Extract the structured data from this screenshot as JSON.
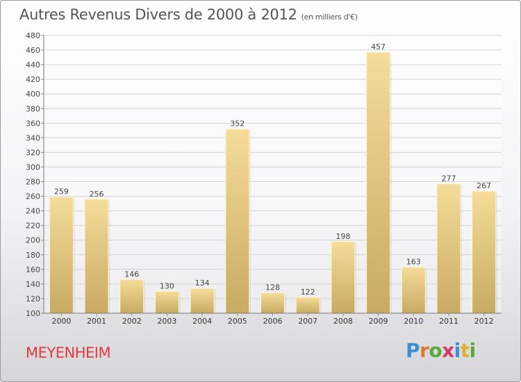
{
  "header": {
    "title": "Autres Revenus Divers de 2000 à 2012",
    "subtitle": "(en milliers d'€)"
  },
  "footer": {
    "city": "MEYENHEIM",
    "logo_text": "Proxiti"
  },
  "colors": {
    "bar_light": "#f5dc9a",
    "bar_dark": "#c8aa62",
    "city": "#e03a3a"
  },
  "chart_data": {
    "type": "bar",
    "categories": [
      "2000",
      "2001",
      "2002",
      "2003",
      "2004",
      "2005",
      "2006",
      "2007",
      "2008",
      "2009",
      "2010",
      "2011",
      "2012"
    ],
    "values": [
      259,
      256,
      146,
      130,
      134,
      352,
      128,
      122,
      198,
      457,
      163,
      277,
      267
    ],
    "title": "Autres Revenus Divers de 2000 à 2012",
    "subtitle": "(en milliers d'€)",
    "xlabel": "",
    "ylabel": "",
    "ylim": [
      100,
      480
    ],
    "yticks": [
      100,
      120,
      140,
      160,
      180,
      200,
      220,
      240,
      260,
      280,
      300,
      320,
      340,
      360,
      380,
      400,
      420,
      440,
      460,
      480
    ],
    "grid": true,
    "data_labels": true
  }
}
